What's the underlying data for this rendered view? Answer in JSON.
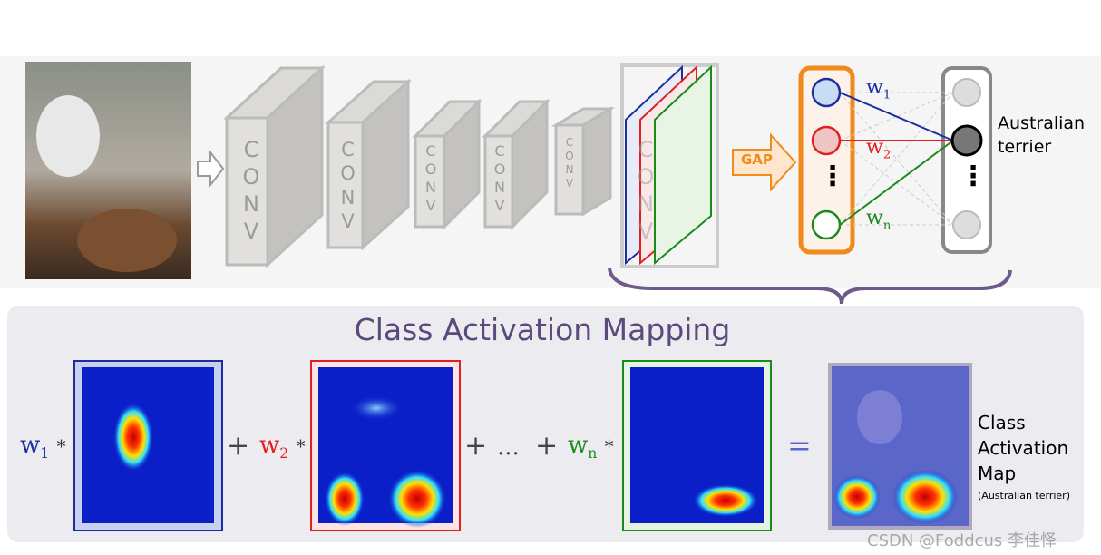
{
  "network": {
    "conv_layers": [
      "CONV",
      "CONV",
      "CONV",
      "CONV",
      "CONV",
      "CONV"
    ],
    "gap": "GAP",
    "ellipsis": "⋮",
    "weights": [
      {
        "w": "w",
        "sub": "1"
      },
      {
        "w": "w",
        "sub": "2"
      },
      {
        "w": "w",
        "sub": "n"
      }
    ],
    "output_label": "Australian terrier"
  },
  "cam": {
    "title": "Class Activation Mapping",
    "terms": [
      {
        "w": "w",
        "sub": "1"
      },
      {
        "w": "w",
        "sub": "2"
      },
      {
        "w": "w",
        "sub": "n"
      }
    ],
    "operator": "*",
    "plus": "+",
    "ellipsis": "...",
    "equals": "=",
    "result_label": "Class Activation Map",
    "result_class": "(Australian terrier)"
  },
  "watermark": "CSDN @Foddcus 李佳怿"
}
